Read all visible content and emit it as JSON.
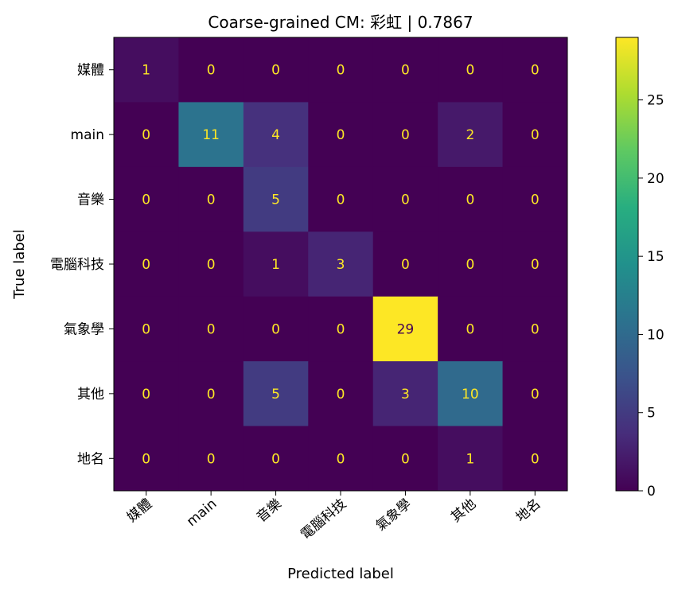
{
  "chart_data": {
    "type": "heatmap",
    "title": "Coarse-grained CM: 彩虹 | 0.7867",
    "xlabel": "Predicted label",
    "ylabel": "True label",
    "x_categories": [
      "媒體",
      "main",
      "音樂",
      "電腦科技",
      "氣象學",
      "其他",
      "地名"
    ],
    "y_categories": [
      "媒體",
      "main",
      "音樂",
      "電腦科技",
      "氣象學",
      "其他",
      "地名"
    ],
    "matrix": [
      [
        1,
        0,
        0,
        0,
        0,
        0,
        0
      ],
      [
        0,
        11,
        4,
        0,
        0,
        2,
        0
      ],
      [
        0,
        0,
        5,
        0,
        0,
        0,
        0
      ],
      [
        0,
        0,
        1,
        3,
        0,
        0,
        0
      ],
      [
        0,
        0,
        0,
        0,
        29,
        0,
        0
      ],
      [
        0,
        0,
        5,
        0,
        3,
        10,
        0
      ],
      [
        0,
        0,
        0,
        0,
        0,
        1,
        0
      ]
    ],
    "colormap": "viridis",
    "vmin": 0,
    "vmax": 29,
    "colorbar_ticks": [
      0,
      5,
      10,
      15,
      20,
      25
    ],
    "colorbar_tick_labels": [
      "0",
      "5",
      "10",
      "15",
      "20",
      "25"
    ],
    "text_color_dark_cell": "#fde725",
    "text_color_bright_cell": "#440154",
    "grid": false
  }
}
